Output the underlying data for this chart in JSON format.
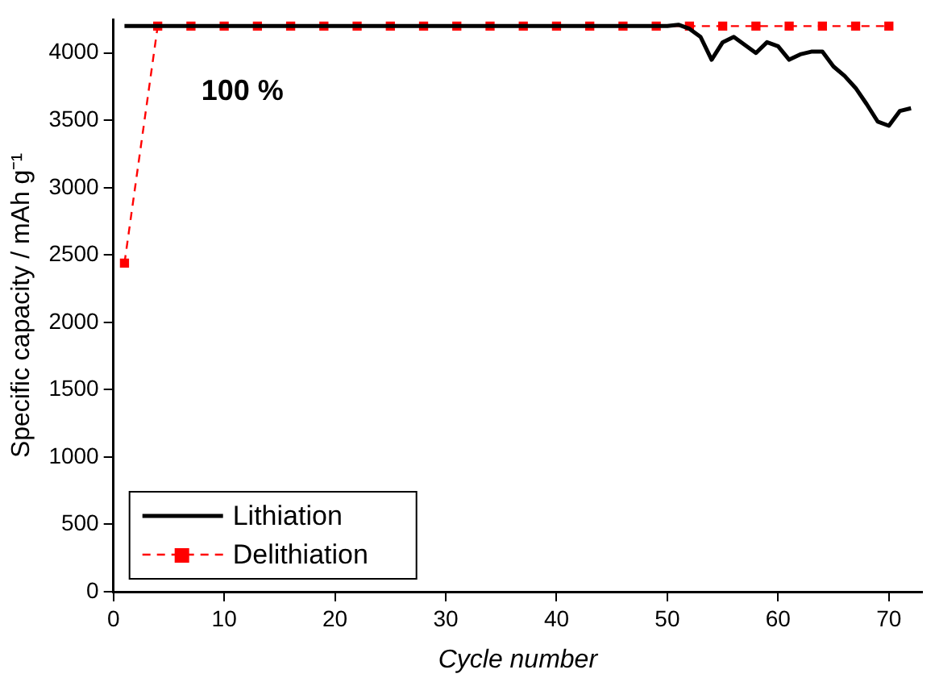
{
  "chart_data": {
    "type": "line",
    "xlabel": "Cycle number",
    "ylabel": "Specific capacity / mAh g⁻¹",
    "xlim": [
      0,
      73
    ],
    "xticks": [
      0,
      10,
      20,
      30,
      40,
      50,
      60,
      70
    ],
    "ylim": [
      0,
      4250
    ],
    "yticks": [
      0,
      500,
      1000,
      1500,
      2000,
      2500,
      3000,
      3500,
      4000
    ],
    "grid": false,
    "legend": "bottom left",
    "annotations": [
      "100 %"
    ],
    "series": [
      {
        "name": "Lithiation",
        "color": "#000000",
        "line_style": "solid",
        "marker": "none",
        "x": [
          1,
          50,
          51,
          52,
          53,
          54,
          55,
          56,
          57,
          58,
          59,
          60,
          61,
          62,
          63,
          64,
          65,
          66,
          67,
          68,
          69,
          70,
          71,
          72
        ],
        "values": [
          4200,
          4200,
          4210,
          4180,
          4120,
          3950,
          4080,
          4120,
          4060,
          4000,
          4080,
          4050,
          3950,
          3990,
          4010,
          4010,
          3900,
          3830,
          3740,
          3620,
          3490,
          3460,
          3570,
          3590
        ]
      },
      {
        "name": "Delithiation",
        "color": "#ff0000",
        "line_style": "dashed",
        "marker": "square",
        "x": [
          1,
          4,
          7,
          10,
          13,
          16,
          19,
          22,
          25,
          28,
          31,
          34,
          37,
          40,
          43,
          46,
          49,
          52,
          55,
          58,
          61,
          64,
          67,
          70
        ],
        "values": [
          2440,
          4200,
          4200,
          4200,
          4200,
          4200,
          4200,
          4200,
          4200,
          4200,
          4200,
          4200,
          4200,
          4200,
          4200,
          4200,
          4200,
          4200,
          4200,
          4200,
          4200,
          4200,
          4200,
          4200
        ]
      }
    ]
  }
}
